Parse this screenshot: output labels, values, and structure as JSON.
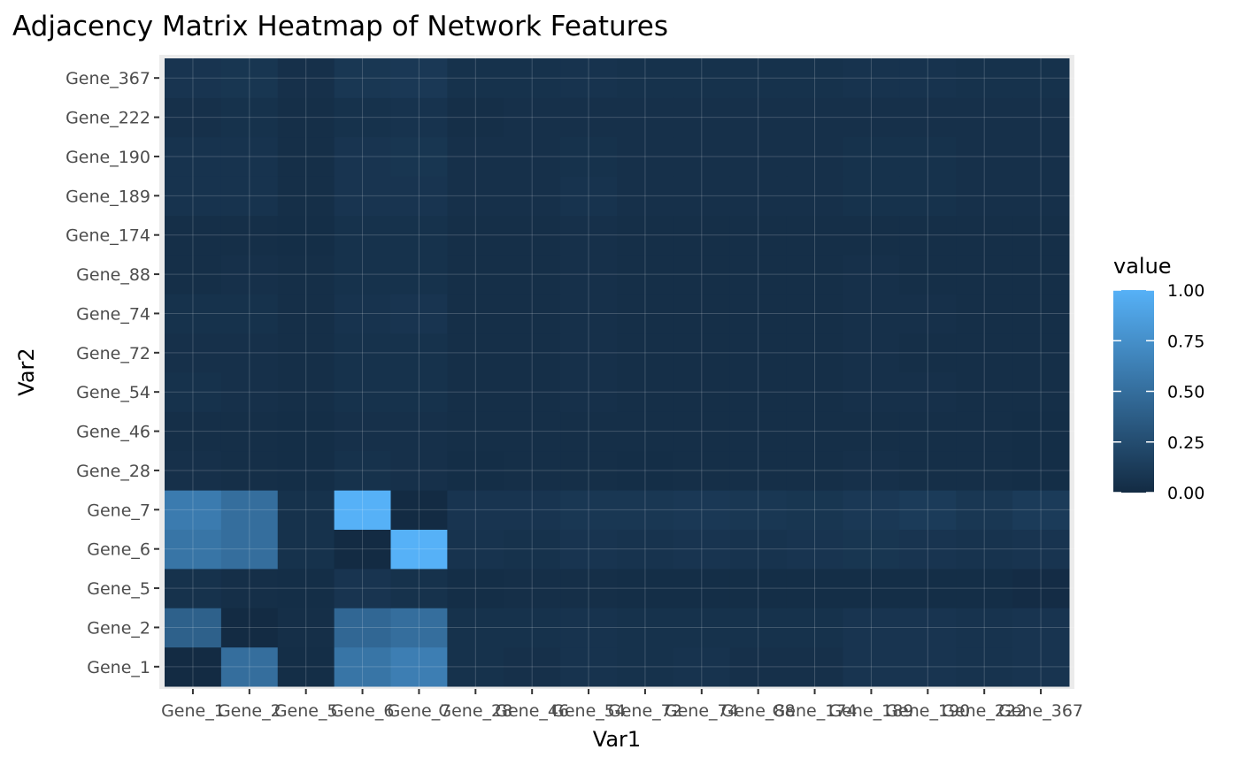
{
  "chart_data": {
    "type": "heatmap",
    "title": "Adjacency Matrix Heatmap of Network Features",
    "xlabel": "Var1",
    "ylabel": "Var2",
    "x_categories": [
      "Gene_1",
      "Gene_2",
      "Gene_5",
      "Gene_6",
      "Gene_7",
      "Gene_28",
      "Gene_46",
      "Gene_54",
      "Gene_72",
      "Gene_74",
      "Gene_88",
      "Gene_174",
      "Gene_189",
      "Gene_190",
      "Gene_222",
      "Gene_367"
    ],
    "y_categories": [
      "Gene_1",
      "Gene_2",
      "Gene_5",
      "Gene_6",
      "Gene_7",
      "Gene_28",
      "Gene_46",
      "Gene_54",
      "Gene_72",
      "Gene_74",
      "Gene_88",
      "Gene_174",
      "Gene_189",
      "Gene_190",
      "Gene_222",
      "Gene_367"
    ],
    "values": [
      [
        0.0,
        0.5,
        0.02,
        0.55,
        0.62,
        0.05,
        0.04,
        0.06,
        0.05,
        0.06,
        0.04,
        0.04,
        0.07,
        0.07,
        0.06,
        0.07
      ],
      [
        0.4,
        0.0,
        0.03,
        0.45,
        0.5,
        0.05,
        0.05,
        0.06,
        0.05,
        0.05,
        0.05,
        0.05,
        0.07,
        0.07,
        0.06,
        0.07
      ],
      [
        0.05,
        0.03,
        0.02,
        0.07,
        0.05,
        0.02,
        0.03,
        0.03,
        0.02,
        0.02,
        0.02,
        0.02,
        0.02,
        0.02,
        0.02,
        0.01
      ],
      [
        0.55,
        0.5,
        0.05,
        0.0,
        1.0,
        0.06,
        0.05,
        0.07,
        0.06,
        0.07,
        0.06,
        0.07,
        0.08,
        0.07,
        0.06,
        0.07
      ],
      [
        0.6,
        0.5,
        0.05,
        1.0,
        0.0,
        0.07,
        0.07,
        0.09,
        0.09,
        0.1,
        0.09,
        0.08,
        0.1,
        0.12,
        0.09,
        0.12
      ],
      [
        0.04,
        0.03,
        0.02,
        0.05,
        0.04,
        0.02,
        0.03,
        0.03,
        0.02,
        0.03,
        0.03,
        0.03,
        0.04,
        0.03,
        0.03,
        0.02
      ],
      [
        0.03,
        0.03,
        0.02,
        0.04,
        0.04,
        0.03,
        0.03,
        0.03,
        0.03,
        0.03,
        0.03,
        0.03,
        0.03,
        0.03,
        0.03,
        0.02
      ],
      [
        0.05,
        0.04,
        0.03,
        0.05,
        0.05,
        0.03,
        0.03,
        0.04,
        0.03,
        0.03,
        0.03,
        0.03,
        0.04,
        0.04,
        0.03,
        0.03
      ],
      [
        0.04,
        0.04,
        0.03,
        0.05,
        0.05,
        0.03,
        0.03,
        0.04,
        0.03,
        0.03,
        0.03,
        0.03,
        0.04,
        0.03,
        0.03,
        0.03
      ],
      [
        0.05,
        0.05,
        0.03,
        0.06,
        0.07,
        0.03,
        0.03,
        0.04,
        0.03,
        0.03,
        0.03,
        0.03,
        0.04,
        0.04,
        0.03,
        0.03
      ],
      [
        0.03,
        0.04,
        0.03,
        0.05,
        0.05,
        0.03,
        0.03,
        0.04,
        0.03,
        0.03,
        0.03,
        0.03,
        0.04,
        0.03,
        0.03,
        0.03
      ],
      [
        0.03,
        0.03,
        0.02,
        0.05,
        0.05,
        0.03,
        0.03,
        0.04,
        0.03,
        0.03,
        0.03,
        0.03,
        0.03,
        0.03,
        0.03,
        0.03
      ],
      [
        0.06,
        0.06,
        0.03,
        0.07,
        0.07,
        0.04,
        0.04,
        0.06,
        0.04,
        0.04,
        0.04,
        0.04,
        0.05,
        0.05,
        0.04,
        0.04
      ],
      [
        0.06,
        0.06,
        0.03,
        0.07,
        0.08,
        0.04,
        0.04,
        0.05,
        0.04,
        0.04,
        0.04,
        0.04,
        0.05,
        0.05,
        0.04,
        0.04
      ],
      [
        0.04,
        0.05,
        0.03,
        0.05,
        0.06,
        0.03,
        0.04,
        0.04,
        0.04,
        0.04,
        0.04,
        0.04,
        0.04,
        0.04,
        0.04,
        0.04
      ],
      [
        0.07,
        0.08,
        0.04,
        0.09,
        0.1,
        0.05,
        0.05,
        0.06,
        0.05,
        0.05,
        0.05,
        0.05,
        0.06,
        0.06,
        0.05,
        0.05
      ]
    ],
    "legend": {
      "title": "value",
      "placement": "right",
      "breaks": [
        0.0,
        0.25,
        0.5,
        0.75,
        1.0
      ],
      "labels": [
        "0.00",
        "0.25",
        "0.50",
        "0.75",
        "1.00"
      ],
      "low_color": "#132B43",
      "high_color": "#56B1F7"
    },
    "value_range": [
      0,
      1
    ],
    "grid": true
  }
}
